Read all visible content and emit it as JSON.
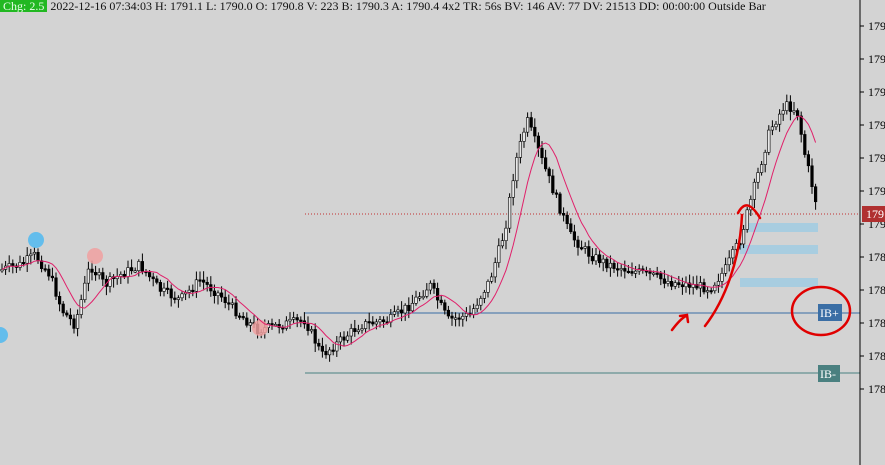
{
  "header": {
    "chg_badge": "Chg: 2.5",
    "info": "2022-12-16 07:34:03 H: 1791.1 L: 1790.0 O: 1790.8 V: 223 B: 1790.3 A: 1790.4 4x2 TR: 56s BV: 146 AV: 77 DV: 21513 DD: 00:00:00 Outside Bar"
  },
  "chart_data": {
    "type": "candlestick",
    "y_axis_ticks": [
      "179",
      "179",
      "179",
      "179",
      "179",
      "179",
      "179",
      "178",
      "178",
      "178",
      "178",
      "178"
    ],
    "y_axis_side": "right",
    "price_marker": "179",
    "levels": [
      {
        "label": "IB+",
        "color": "#3a6ea5",
        "circled": true
      },
      {
        "label": "IB-",
        "color": "#4a8080"
      }
    ],
    "moving_average": {
      "color": "#e0206a"
    },
    "bull_color": "#22aa22",
    "bear_color": "#000000",
    "volume_profile_color": "#a8cde0",
    "annotation_color": "#e00000",
    "grid": false
  }
}
